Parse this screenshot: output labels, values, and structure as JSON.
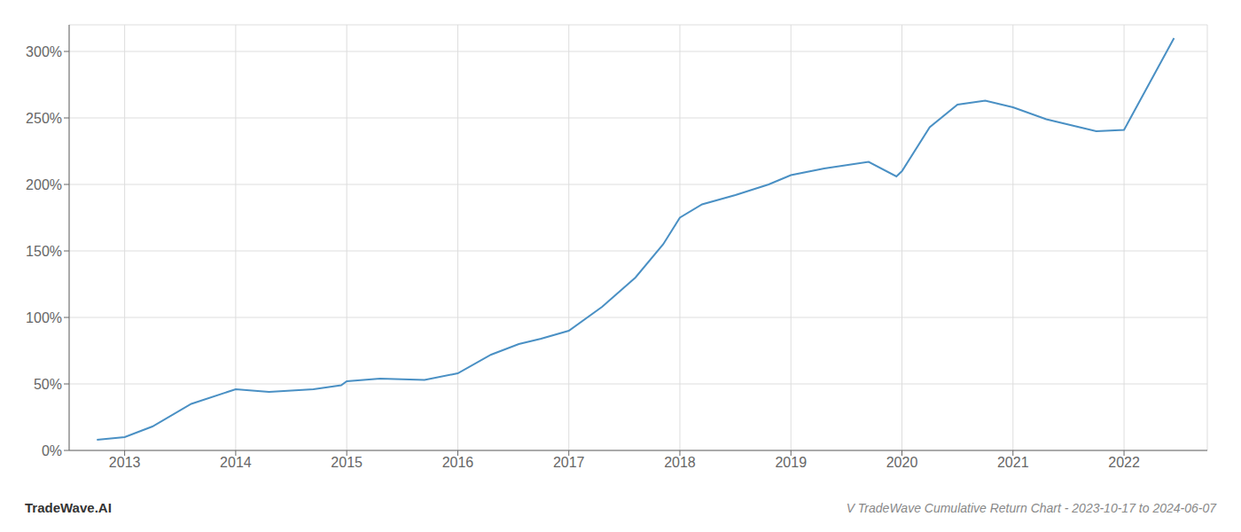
{
  "chart_data": {
    "type": "line",
    "title": "V TradeWave Cumulative Return Chart - 2023-10-17 to 2024-06-07",
    "annotations": [
      "TradeWave.AI"
    ],
    "x": [
      2012.75,
      2013.0,
      2013.25,
      2013.6,
      2014.0,
      2014.3,
      2014.7,
      2014.95,
      2015.0,
      2015.3,
      2015.7,
      2016.0,
      2016.3,
      2016.55,
      2016.75,
      2017.0,
      2017.3,
      2017.6,
      2017.85,
      2018.0,
      2018.2,
      2018.5,
      2018.8,
      2019.0,
      2019.3,
      2019.7,
      2019.95,
      2020.0,
      2020.25,
      2020.5,
      2020.75,
      2021.0,
      2021.3,
      2021.55,
      2021.75,
      2022.0,
      2022.45
    ],
    "values": [
      8,
      10,
      18,
      35,
      46,
      44,
      46,
      49,
      52,
      54,
      53,
      58,
      72,
      80,
      84,
      90,
      108,
      130,
      155,
      175,
      185,
      192,
      200,
      207,
      212,
      217,
      206,
      210,
      243,
      260,
      263,
      258,
      249,
      244,
      240,
      241,
      310
    ],
    "color": "#4a90c4",
    "xlim": [
      2012.5,
      2022.75
    ],
    "xticks": [
      2013,
      2014,
      2015,
      2016,
      2017,
      2018,
      2019,
      2020,
      2021,
      2022
    ],
    "ylim": [
      0,
      320
    ],
    "yticks": [
      {
        "value": 0,
        "label": "0%"
      },
      {
        "value": 50,
        "label": "50%"
      },
      {
        "value": 100,
        "label": "100%"
      },
      {
        "value": 150,
        "label": "150%"
      },
      {
        "value": 200,
        "label": "200%"
      },
      {
        "value": 250,
        "label": "250%"
      },
      {
        "value": 300,
        "label": "300%"
      }
    ],
    "grid": true
  }
}
